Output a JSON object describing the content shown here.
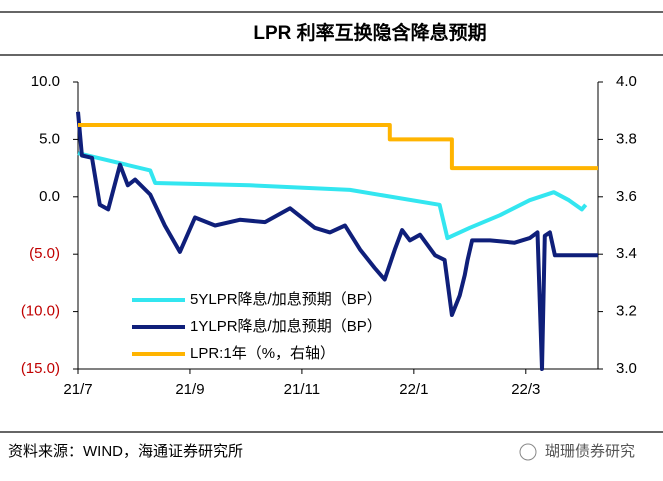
{
  "chart_data": {
    "type": "line",
    "title": "LPR 利率互换隐含降息预期",
    "source": "资料来源：WIND，海通证券研究所",
    "watermark": "瑚珊债券研究",
    "xlim": [
      0,
      9.29
    ],
    "xticks": [
      {
        "value": 0,
        "label": "21/7"
      },
      {
        "value": 2,
        "label": "21/9"
      },
      {
        "value": 4,
        "label": "21/11"
      },
      {
        "value": 6,
        "label": "22/1"
      },
      {
        "value": 8,
        "label": "22/3"
      }
    ],
    "ylim": [
      -15,
      10
    ],
    "yticks": [
      {
        "value": 10,
        "label": "10.0"
      },
      {
        "value": 5,
        "label": "5.0"
      },
      {
        "value": 0,
        "label": "0.0"
      },
      {
        "value": -5,
        "label": "(5.0)"
      },
      {
        "value": -10,
        "label": "(10.0)"
      },
      {
        "value": -15,
        "label": "(15.0)"
      }
    ],
    "negative_tick_color": "#c00000",
    "y2lim": [
      3.0,
      4.0
    ],
    "y2ticks": [
      {
        "value": 4.0,
        "label": "4.0"
      },
      {
        "value": 3.8,
        "label": "3.8"
      },
      {
        "value": 3.6,
        "label": "3.6"
      },
      {
        "value": 3.4,
        "label": "3.4"
      },
      {
        "value": 3.2,
        "label": "3.2"
      },
      {
        "value": 3.0,
        "label": "3.0"
      }
    ],
    "series": [
      {
        "name": "5YLPR降息/加息预期（BP）",
        "color": "#33e6f0",
        "x": [
          0,
          1.29,
          1.38,
          3.07,
          4.86,
          6.46,
          6.6,
          7.0,
          7.54,
          8.07,
          8.5,
          8.77,
          9.0,
          9.07
        ],
        "values": [
          3.8,
          2.3,
          1.2,
          1.0,
          0.6,
          -0.7,
          -3.6,
          -2.7,
          -1.6,
          -0.3,
          0.4,
          -0.3,
          -1.1,
          -0.7
        ]
      },
      {
        "name": "1YLPR降息/加息预期（BP）",
        "color": "#0f1f7a",
        "x": [
          0,
          0.07,
          0.25,
          0.39,
          0.54,
          0.75,
          0.89,
          1.02,
          1.29,
          1.55,
          1.82,
          2.09,
          2.45,
          2.89,
          3.34,
          3.79,
          4.23,
          4.5,
          4.77,
          5.04,
          5.3,
          5.48,
          5.66,
          5.79,
          5.93,
          6.11,
          6.38,
          6.55,
          6.68,
          6.82,
          6.91,
          6.96,
          7.04,
          7.36,
          7.8,
          8.07,
          8.21,
          8.29,
          8.34,
          8.43,
          8.52,
          9.29
        ],
        "values": [
          7.4,
          3.6,
          3.4,
          -0.7,
          -1.1,
          2.8,
          1.0,
          1.5,
          0.2,
          -2.5,
          -4.8,
          -1.8,
          -2.5,
          -2.0,
          -2.2,
          -1.0,
          -2.7,
          -3.1,
          -2.5,
          -4.6,
          -6.2,
          -7.2,
          -4.6,
          -2.9,
          -3.8,
          -3.3,
          -5.1,
          -5.5,
          -10.3,
          -8.6,
          -6.8,
          -5.5,
          -3.8,
          -3.8,
          -4.0,
          -3.6,
          -3.1,
          -15,
          -3.4,
          -3.1,
          -5.1,
          -5.1
        ]
      },
      {
        "name": "LPR:1年（%，右轴）",
        "color": "#ffb400",
        "axis": "y2",
        "x": [
          0,
          5.57,
          5.57,
          6.68,
          6.68,
          9.29
        ],
        "values": [
          3.85,
          3.85,
          3.8,
          3.8,
          3.7,
          3.7
        ]
      }
    ]
  }
}
